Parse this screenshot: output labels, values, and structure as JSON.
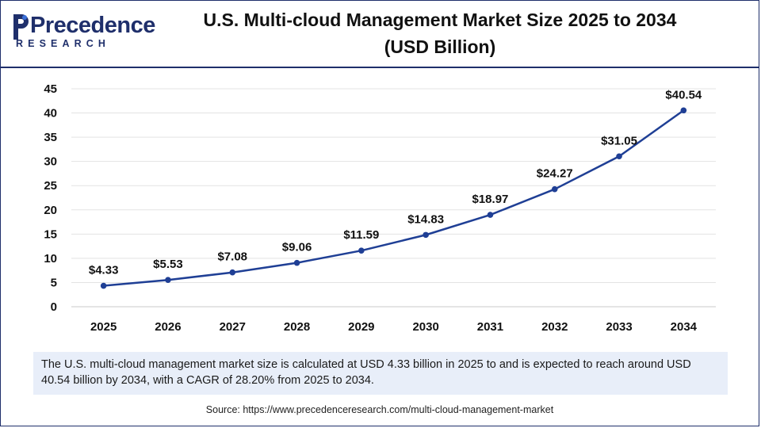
{
  "brand": {
    "name": "Precedence",
    "tagline": "RESEARCH",
    "color": "#1f2f6b",
    "accent": "#3a6fd8"
  },
  "title": "U.S. Multi-cloud Management Market Size 2025 to 2034",
  "subtitle": "(USD Billion)",
  "chart_data": {
    "type": "line",
    "title": "U.S. Multi-cloud Management Market Size 2025 to 2034 (USD Billion)",
    "xlabel": "",
    "ylabel": "",
    "categories": [
      "2025",
      "2026",
      "2027",
      "2028",
      "2029",
      "2030",
      "2031",
      "2032",
      "2033",
      "2034"
    ],
    "series": [
      {
        "values": [
          4.33,
          5.53,
          7.08,
          9.06,
          11.59,
          14.83,
          18.97,
          24.27,
          31.05,
          40.54
        ],
        "labels": [
          "$4.33",
          "$5.53",
          "$7.08",
          "$9.06",
          "$11.59",
          "$14.83",
          "$18.97",
          "$24.27",
          "$31.05",
          "$40.54"
        ],
        "color": "#1f3f95"
      }
    ],
    "ylim": [
      0,
      45
    ],
    "yticks": [
      0,
      5,
      10,
      15,
      20,
      25,
      30,
      35,
      40,
      45
    ],
    "grid": true,
    "legend": "none"
  },
  "caption": "The U.S. multi-cloud management market size is calculated at USD 4.33 billion in 2025 to and is expected to reach around USD 40.54 billion by 2034, with a CAGR of 28.20% from 2025 to 2034.",
  "source": "Source: https://www.precedenceresearch.com/multi-cloud-management-market"
}
